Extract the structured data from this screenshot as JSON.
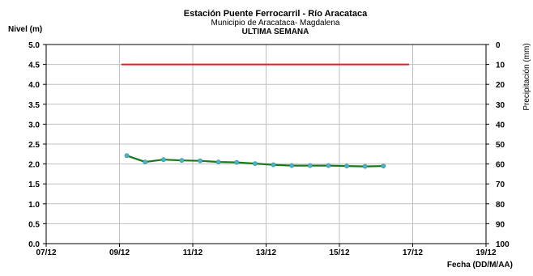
{
  "chart_data": {
    "type": "line",
    "title": "Estación Puente Ferrocarril - Río Aracataca",
    "subtitle": "Municipio de Aracataca- Magdalena",
    "period": "ULTIMA SEMANA",
    "ylabel": "Nivel (m)",
    "y2label": "Precipitación (mm)",
    "xlabel": "Fecha (DD/M/AA)",
    "ylim": [
      0,
      5
    ],
    "y2lim": [
      0,
      100
    ],
    "y2_inverted": true,
    "xlim": [
      0,
      12
    ],
    "yticks": [
      "0.0",
      "0.5",
      "1.0",
      "1.5",
      "2.0",
      "2.5",
      "3.0",
      "3.5",
      "4.0",
      "4.5",
      "5.0"
    ],
    "y2ticks": [
      "0",
      "10",
      "20",
      "30",
      "40",
      "50",
      "60",
      "70",
      "80",
      "90",
      "100"
    ],
    "xticks": [
      {
        "x": 0,
        "label": "07/12"
      },
      {
        "x": 2,
        "label": "09/12"
      },
      {
        "x": 4,
        "label": "11/12"
      },
      {
        "x": 6,
        "label": "13/12"
      },
      {
        "x": 8,
        "label": "15/12"
      },
      {
        "x": 10,
        "label": "17/12"
      },
      {
        "x": 12,
        "label": "19/12"
      }
    ],
    "grid": true,
    "colors": {
      "level": "#1a7a1a",
      "marker": "#4fb3c8",
      "threshold": "#e02020",
      "grid": "#c0c0c0"
    },
    "series": [
      {
        "kind": "level",
        "x": [
          2.2,
          2.7,
          3.2,
          3.7,
          4.2,
          4.7,
          5.2,
          5.7,
          6.2,
          6.7,
          7.2,
          7.7,
          8.2,
          8.7,
          9.2
        ],
        "y": [
          2.21,
          2.05,
          2.11,
          2.09,
          2.08,
          2.05,
          2.04,
          2.01,
          1.98,
          1.96,
          1.96,
          1.96,
          1.95,
          1.94,
          1.95
        ]
      },
      {
        "kind": "threshold",
        "x": [
          2.05,
          9.9
        ],
        "y": [
          4.5,
          4.5
        ]
      }
    ]
  }
}
